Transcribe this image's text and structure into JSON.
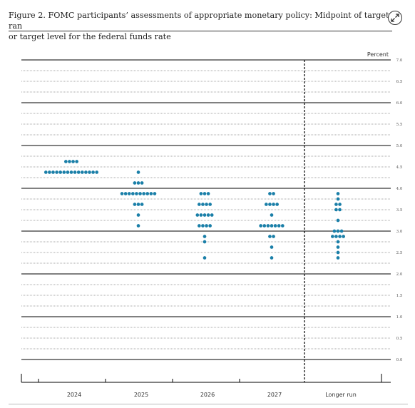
{
  "caption": {
    "line1": "Figure 2.  FOMC participants’ assessments of appropriate monetary policy:  Midpoint of target ran",
    "line2": "or target level for the federal funds rate"
  },
  "expand_icon": "expand-arrows-icon",
  "chart_data": {
    "type": "scatter",
    "subtype": "dot-plot",
    "ylabel": "Percent",
    "ylim": [
      0,
      7
    ],
    "yticks": [
      "0.0",
      "0.5",
      "1.0",
      "1.5",
      "2.0",
      "2.5",
      "3.0",
      "3.5",
      "4.0",
      "4.5",
      "5.0",
      "5.5",
      "6.0",
      "6.5",
      "7.0"
    ],
    "categories": [
      "2024",
      "2025",
      "2026",
      "2027",
      "Longer run"
    ],
    "dot_color": "#1a7fa8",
    "separator_after_category": "2027",
    "points": [
      {
        "category": "2024",
        "dots": [
          {
            "y": 4.625,
            "count": 4
          },
          {
            "y": 4.375,
            "count": 15
          }
        ]
      },
      {
        "category": "2025",
        "dots": [
          {
            "y": 4.375,
            "count": 1
          },
          {
            "y": 4.125,
            "count": 3
          },
          {
            "y": 3.875,
            "count": 10
          },
          {
            "y": 3.625,
            "count": 3
          },
          {
            "y": 3.375,
            "count": 1
          },
          {
            "y": 3.125,
            "count": 1
          }
        ]
      },
      {
        "category": "2026",
        "dots": [
          {
            "y": 3.875,
            "count": 3
          },
          {
            "y": 3.625,
            "count": 4
          },
          {
            "y": 3.375,
            "count": 5
          },
          {
            "y": 3.125,
            "count": 4
          },
          {
            "y": 2.875,
            "count": 1
          },
          {
            "y": 2.75,
            "count": 1
          },
          {
            "y": 2.375,
            "count": 1
          }
        ]
      },
      {
        "category": "2027",
        "dots": [
          {
            "y": 3.875,
            "count": 2
          },
          {
            "y": 3.625,
            "count": 4
          },
          {
            "y": 3.375,
            "count": 1
          },
          {
            "y": 3.125,
            "count": 7
          },
          {
            "y": 2.875,
            "count": 2
          },
          {
            "y": 2.625,
            "count": 1
          },
          {
            "y": 2.375,
            "count": 1
          }
        ]
      },
      {
        "category": "Longer run",
        "dots": [
          {
            "y": 3.875,
            "count": 1
          },
          {
            "y": 3.75,
            "count": 1
          },
          {
            "y": 3.625,
            "count": 2
          },
          {
            "y": 3.5,
            "count": 2
          },
          {
            "y": 3.25,
            "count": 1
          },
          {
            "y": 3.0,
            "count": 3
          },
          {
            "y": 2.875,
            "count": 4
          },
          {
            "y": 2.75,
            "count": 1
          },
          {
            "y": 2.625,
            "count": 1
          },
          {
            "y": 2.5,
            "count": 1
          },
          {
            "y": 2.375,
            "count": 1
          }
        ]
      }
    ]
  }
}
